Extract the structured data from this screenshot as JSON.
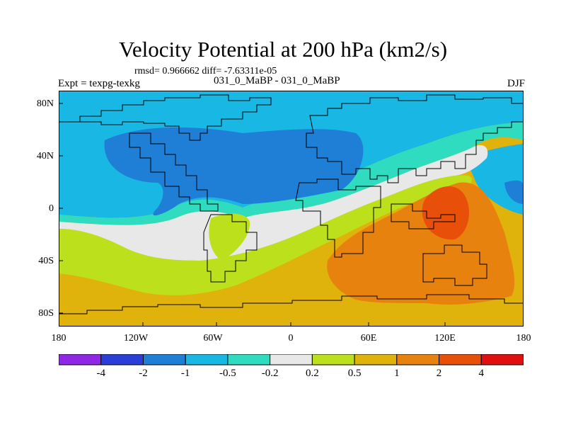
{
  "title": "Velocity Potential at 200 hPa (km2/s)",
  "stats": "rmsd= 0.966662 diff= -7.63311e-05",
  "experiment": "Expt = texpg-texkg",
  "difference": "031_0_MaBP - 031_0_MaBP",
  "season": "DJF",
  "lat_labels": [
    "80N",
    "40N",
    "0",
    "40S",
    "80S"
  ],
  "lon_labels": [
    "180",
    "120W",
    "60W",
    "0",
    "60E",
    "120E",
    "180"
  ],
  "colorbar": {
    "labels": [
      "-4",
      "-2",
      "-1",
      "-0.5",
      "-0.2",
      "0.2",
      "0.5",
      "1",
      "2",
      "4"
    ],
    "colors": [
      "#8e28e6",
      "#2a3fd8",
      "#1f7fd6",
      "#19b7e3",
      "#2fdcc0",
      "#e8e8e8",
      "#bde01d",
      "#e0b20c",
      "#e8820f",
      "#e8500a",
      "#e01010"
    ]
  },
  "map_colors": {
    "lvl_m2": "#1f7fd6",
    "lvl_m1": "#19b7e3",
    "lvl_m05": "#2fdcc0",
    "lvl_0": "#e8e8e8",
    "lvl_02": "#bde01d",
    "lvl_05": "#e0b20c",
    "lvl_1": "#e8820f",
    "lvl_2": "#e8500a"
  }
}
